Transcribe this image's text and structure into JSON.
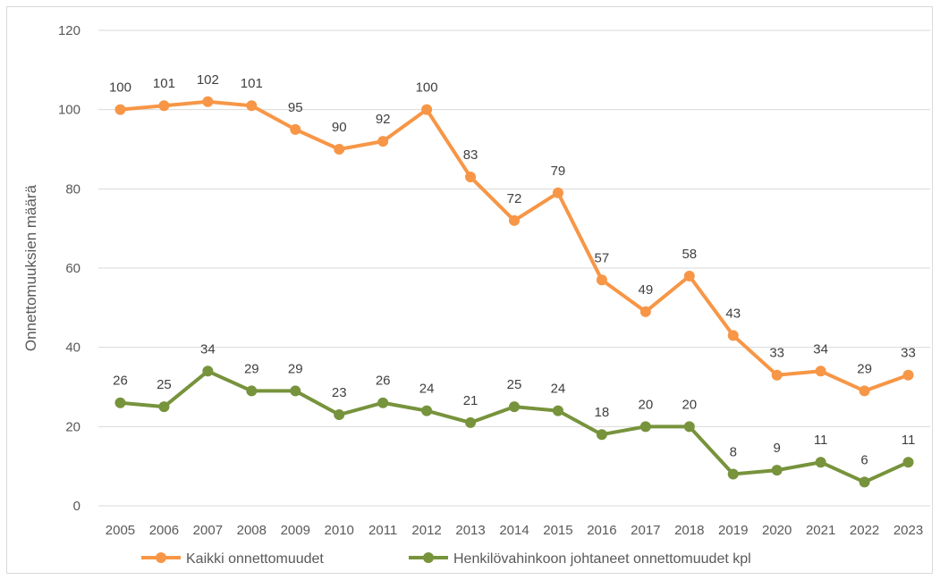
{
  "chart_data": {
    "type": "line",
    "title": "",
    "xlabel": "",
    "ylabel": "Onnettomuuksien määrä",
    "ylim": [
      0,
      120
    ],
    "yticks": [
      0,
      20,
      40,
      60,
      80,
      100,
      120
    ],
    "grid": true,
    "legend_position": "bottom",
    "categories": [
      "2005",
      "2006",
      "2007",
      "2008",
      "2009",
      "2010",
      "2011",
      "2012",
      "2013",
      "2014",
      "2015",
      "2016",
      "2017",
      "2018",
      "2019",
      "2020",
      "2021",
      "2022",
      "2023"
    ],
    "series": [
      {
        "name": "Kaikki onnettomuudet",
        "color": "#F79646",
        "values": [
          100,
          101,
          102,
          101,
          95,
          90,
          92,
          100,
          83,
          72,
          79,
          57,
          49,
          58,
          43,
          33,
          34,
          29,
          33
        ]
      },
      {
        "name": "Henkilövahinkoon johtaneet onnettomuudet kpl",
        "color": "#77933C",
        "values": [
          26,
          25,
          34,
          29,
          29,
          23,
          26,
          24,
          21,
          25,
          24,
          18,
          20,
          20,
          8,
          9,
          11,
          6,
          11
        ]
      }
    ]
  }
}
